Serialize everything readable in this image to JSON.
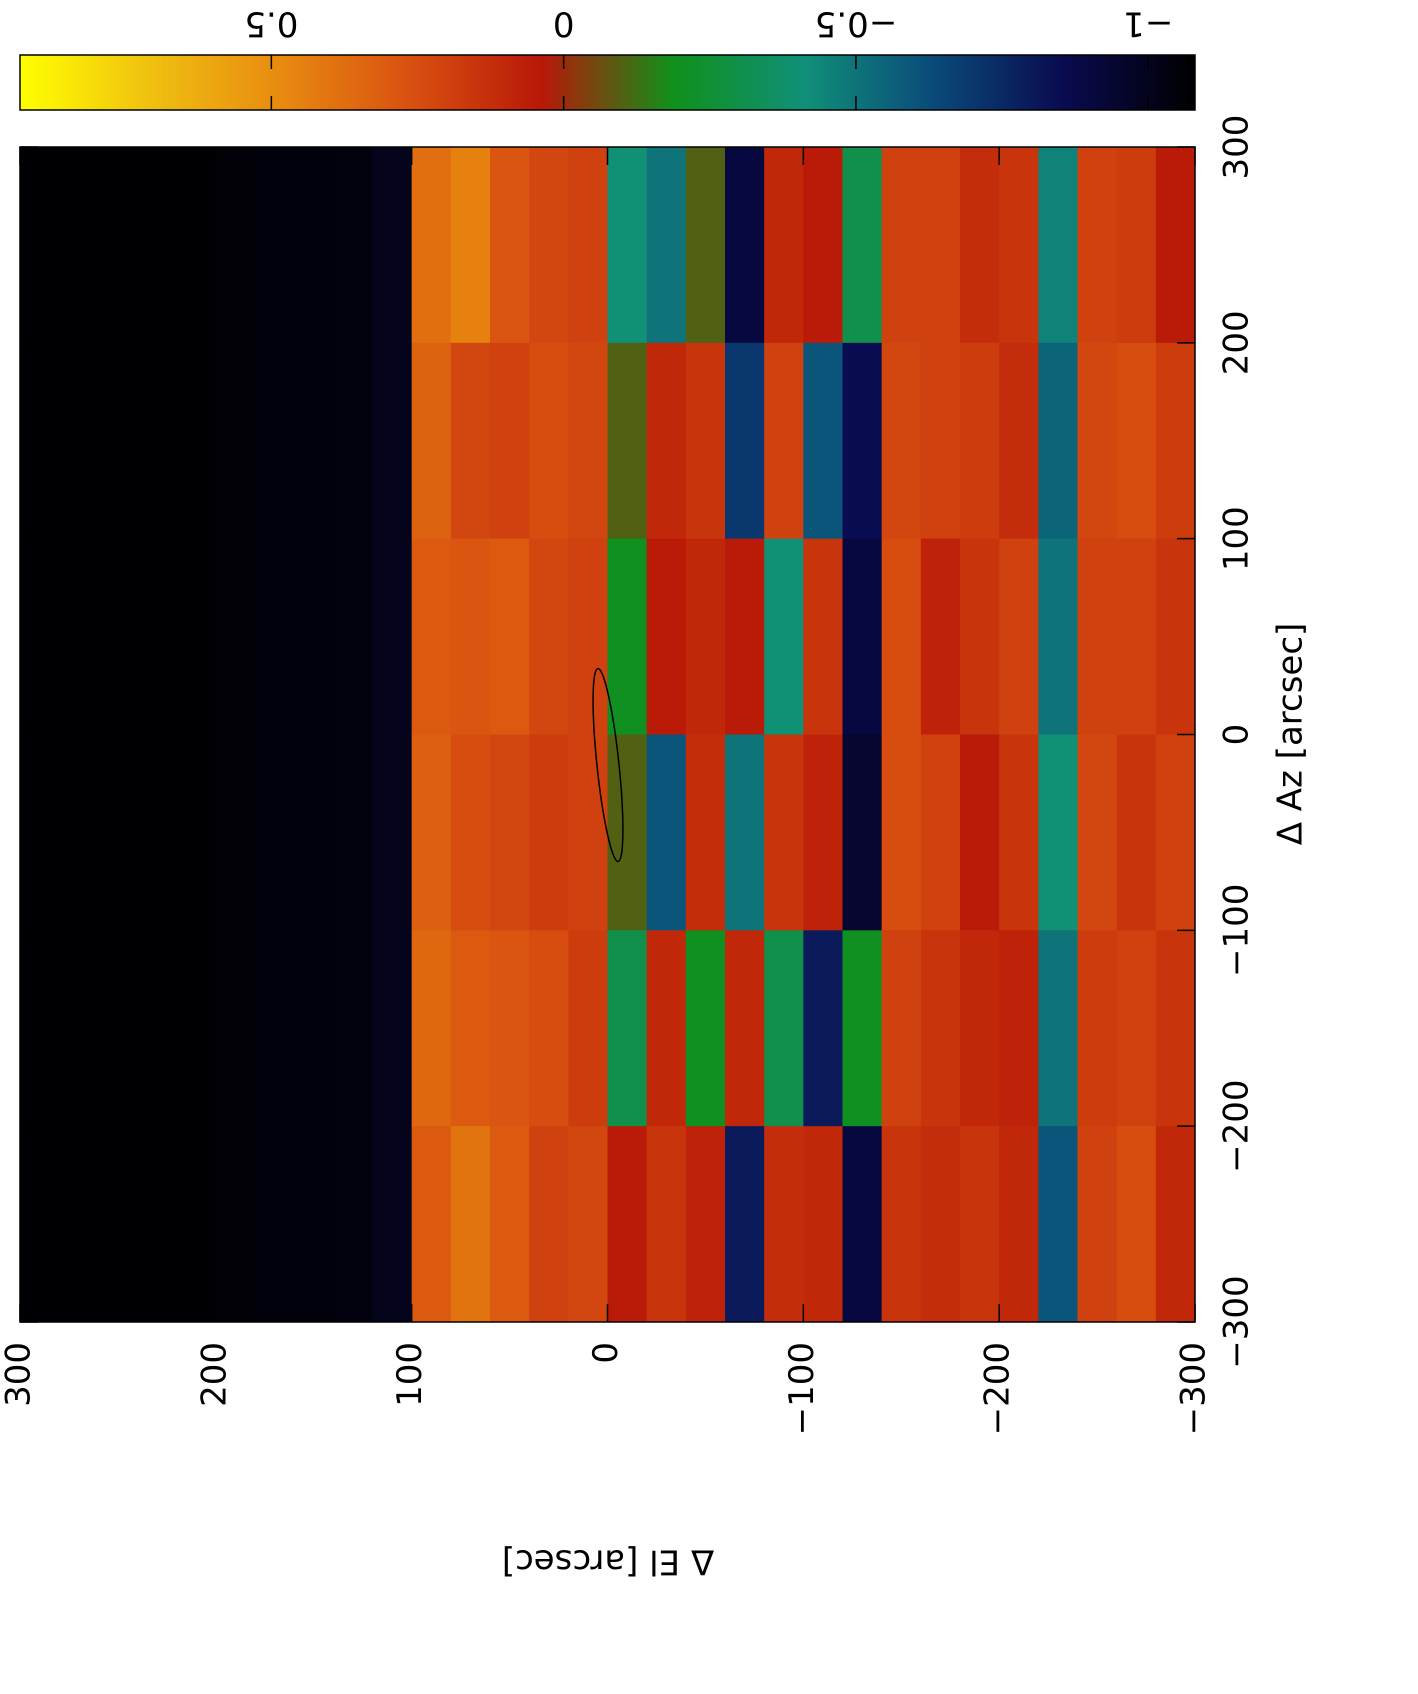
{
  "chart_data": {
    "type": "heatmap",
    "xlabel": "Δ Az [arcsec]",
    "ylabel": "Δ El [arcsec]",
    "x_edges": [
      -300,
      -200,
      -100,
      0,
      100,
      200,
      300
    ],
    "y_edges": [
      300,
      280,
      260,
      240,
      220,
      200,
      180,
      160,
      140,
      120,
      100,
      80,
      60,
      40,
      20,
      0,
      -20,
      -40,
      -60,
      -80,
      -100,
      -120,
      -140,
      -160,
      -180,
      -200,
      -220,
      -240,
      -260,
      -280,
      -300
    ],
    "z": [
      [
        -1.07,
        -1.07,
        -1.07,
        -1.07,
        -1.07,
        -1.07
      ],
      [
        -1.07,
        -1.07,
        -1.07,
        -1.07,
        -1.07,
        -1.07
      ],
      [
        -1.07,
        -1.07,
        -1.07,
        -1.07,
        -1.07,
        -1.07
      ],
      [
        -1.07,
        -1.07,
        -1.07,
        -1.07,
        -1.07,
        -1.07
      ],
      [
        -1.07,
        -1.07,
        -1.07,
        -1.07,
        -1.07,
        -1.07
      ],
      [
        -1.06,
        -1.06,
        -1.06,
        -1.06,
        -1.06,
        -1.06
      ],
      [
        -1.05,
        -1.05,
        -1.05,
        -1.05,
        -1.05,
        -1.05
      ],
      [
        -1.05,
        -1.05,
        -1.05,
        -1.05,
        -1.05,
        -1.05
      ],
      [
        -1.04,
        -1.04,
        -1.04,
        -1.04,
        -1.04,
        -1.04
      ],
      [
        -1.0,
        -1.0,
        -1.0,
        -1.0,
        -1.0,
        -1.0
      ],
      [
        0.3,
        0.35,
        0.32,
        0.3,
        0.33,
        0.38
      ],
      [
        0.4,
        0.3,
        0.25,
        0.28,
        0.22,
        0.45
      ],
      [
        0.3,
        0.28,
        0.22,
        0.3,
        0.2,
        0.28
      ],
      [
        0.2,
        0.25,
        0.18,
        0.22,
        0.25,
        0.22
      ],
      [
        0.22,
        0.18,
        0.2,
        0.2,
        0.22,
        0.2
      ],
      [
        0.05,
        -0.3,
        -0.1,
        -0.2,
        -0.1,
        -0.4
      ],
      [
        0.15,
        0.1,
        -0.6,
        0.05,
        0.1,
        -0.5
      ],
      [
        0.08,
        -0.2,
        0.12,
        0.1,
        0.15,
        -0.1
      ],
      [
        -0.8,
        0.1,
        -0.5,
        0.05,
        -0.7,
        -0.9
      ],
      [
        0.12,
        -0.3,
        0.15,
        -0.4,
        0.2,
        0.1
      ],
      [
        0.1,
        -0.8,
        0.08,
        0.15,
        -0.6,
        0.05
      ],
      [
        -0.9,
        -0.2,
        -0.95,
        -0.9,
        -0.85,
        -0.3
      ],
      [
        0.15,
        0.2,
        0.25,
        0.25,
        0.22,
        0.2
      ],
      [
        0.12,
        0.15,
        0.2,
        0.08,
        0.2,
        0.2
      ],
      [
        0.15,
        0.1,
        0.05,
        0.15,
        0.18,
        0.12
      ],
      [
        0.1,
        0.08,
        0.15,
        0.2,
        0.12,
        0.15
      ],
      [
        -0.6,
        -0.5,
        -0.4,
        -0.5,
        -0.55,
        -0.45
      ],
      [
        0.2,
        0.18,
        0.22,
        0.2,
        0.22,
        0.2
      ],
      [
        0.25,
        0.2,
        0.15,
        0.2,
        0.25,
        0.18
      ],
      [
        0.1,
        0.15,
        0.2,
        0.15,
        0.18,
        0.05
      ]
    ],
    "xlim": [
      -300,
      300
    ],
    "ylim": [
      -300,
      300
    ],
    "xticks": [
      {
        "value": -300,
        "label": "−300"
      },
      {
        "value": -200,
        "label": "−200"
      },
      {
        "value": -100,
        "label": "−100"
      },
      0,
      100,
      200,
      300
    ],
    "yticks": [
      {
        "value": -300,
        "label": "−300"
      },
      {
        "value": -200,
        "label": "−200"
      },
      {
        "value": -100,
        "label": "−100"
      },
      0,
      100,
      200,
      300
    ],
    "clim": [
      -1.08,
      0.93
    ],
    "cticks": [
      {
        "value": -1,
        "label": "−1"
      },
      {
        "value": -0.5,
        "label": "−0.5"
      },
      0,
      0.5
    ],
    "colormap": [
      "#000000",
      "#0a0a50",
      "#0a4a7a",
      "#109078",
      "#10901a",
      "#b81808",
      "#d85010",
      "#e88a10",
      "#f0c010",
      "#ffff00"
    ]
  }
}
